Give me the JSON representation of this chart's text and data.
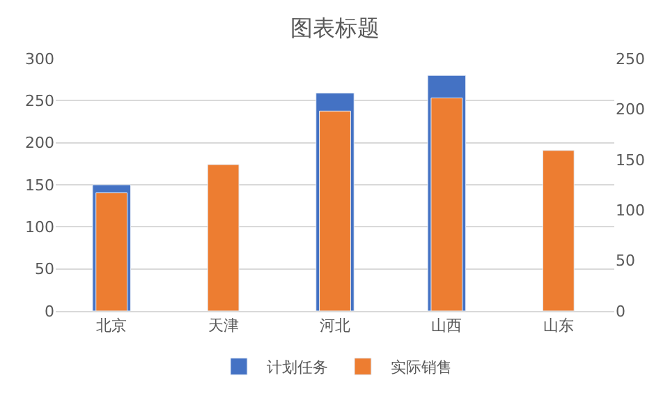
{
  "chart_data": {
    "type": "bar",
    "title": "图表标题",
    "categories": [
      "北京",
      "天津",
      "河北",
      "山西",
      "山东"
    ],
    "series": [
      {
        "name": "计划任务",
        "color": "#4472c4",
        "values": [
          150,
          null,
          259,
          280,
          null
        ]
      },
      {
        "name": "实际销售",
        "color": "#ed7d31",
        "values": [
          117,
          145,
          198,
          211,
          159
        ],
        "axis": "y2"
      }
    ],
    "ylim": [
      0,
      300
    ],
    "yticks": [
      0,
      50,
      100,
      150,
      200,
      250,
      300
    ],
    "y2lim": [
      0,
      250
    ],
    "y2ticks": [
      0,
      50,
      100,
      150,
      200,
      250
    ],
    "grid": "y",
    "legend": "bottom"
  }
}
